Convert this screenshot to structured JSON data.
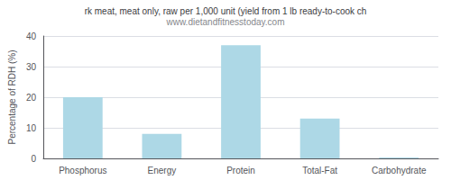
{
  "chart_data": {
    "type": "bar",
    "title": "rk meat, meat only, raw per 1,000 unit (yield from 1 lb ready-to-cook ch",
    "subtitle": "www.dietandfitnesstoday.com",
    "categories": [
      "Phosphorus",
      "Energy",
      "Protein",
      "Total-Fat",
      "Carbohydrate"
    ],
    "values": [
      20.0,
      8.0,
      37.0,
      13.0,
      0.3
    ],
    "color": "#add8e6",
    "ylabel": "Percentage of RDH (%)",
    "ylim": [
      0,
      40
    ],
    "yticks": [
      0,
      10,
      20,
      30,
      40
    ],
    "grid": true
  }
}
